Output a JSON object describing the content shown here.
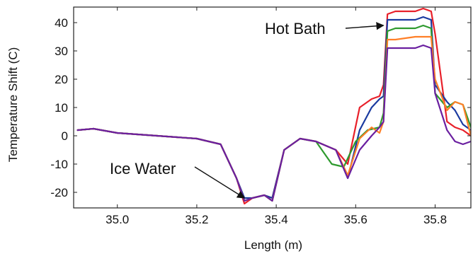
{
  "chart_data": {
    "type": "line",
    "title": "",
    "xlabel": "Length (m)",
    "ylabel": "Temperature Shift (C)",
    "xlim": [
      34.89,
      35.89
    ],
    "ylim": [
      -25.5,
      45.5
    ],
    "xticks": [
      35.0,
      35.2,
      35.4,
      35.6,
      35.8
    ],
    "xtick_labels": [
      "35.0",
      "35.2",
      "35.4",
      "35.6",
      "35.8"
    ],
    "yticks": [
      -20,
      -10,
      0,
      10,
      20,
      30,
      40
    ],
    "ytick_labels": [
      "-20",
      "-10",
      "0",
      "10",
      "20",
      "30",
      "40"
    ],
    "grid": false,
    "legend": "none",
    "annotations": [
      {
        "text": "Hot Bath",
        "target": [
          35.67,
          39
        ]
      },
      {
        "text": "Ice Water",
        "target": [
          35.32,
          -22
        ]
      }
    ],
    "series": [
      {
        "color": "#e8202a",
        "x": [
          34.9,
          34.94,
          35.0,
          35.1,
          35.2,
          35.26,
          35.3,
          35.32,
          35.34,
          35.37,
          35.39,
          35.42,
          35.46,
          35.5,
          35.55,
          35.58,
          35.61,
          35.64,
          35.66,
          35.67,
          35.68,
          35.7,
          35.75,
          35.77,
          35.79,
          35.8,
          35.83,
          35.85,
          35.87,
          35.89
        ],
        "y": [
          2,
          2.5,
          1,
          0,
          -1,
          -3,
          -15,
          -24,
          -22,
          -21,
          -22,
          -5,
          -1,
          -2,
          -5,
          -10,
          10,
          13,
          14,
          18,
          43,
          44,
          44,
          45,
          44,
          36,
          5,
          3,
          2,
          0
        ]
      },
      {
        "color": "#1a3aa0",
        "x": [
          34.9,
          34.94,
          35.0,
          35.1,
          35.2,
          35.26,
          35.3,
          35.32,
          35.34,
          35.37,
          35.39,
          35.42,
          35.46,
          35.5,
          35.55,
          35.58,
          35.61,
          35.64,
          35.66,
          35.67,
          35.68,
          35.7,
          35.75,
          35.77,
          35.79,
          35.8,
          35.83,
          35.85,
          35.87,
          35.89
        ],
        "y": [
          2,
          2.5,
          1,
          0,
          -1,
          -3,
          -15,
          -22,
          -22,
          -21,
          -22,
          -5,
          -1,
          -2,
          -5,
          -15,
          2,
          10,
          13,
          14,
          41,
          41,
          41,
          42,
          41,
          18,
          12,
          9,
          4,
          2
        ]
      },
      {
        "color": "#2e9a2e",
        "x": [
          34.9,
          34.94,
          35.0,
          35.1,
          35.2,
          35.26,
          35.3,
          35.32,
          35.34,
          35.37,
          35.39,
          35.42,
          35.46,
          35.5,
          35.54,
          35.57,
          35.6,
          35.63,
          35.66,
          35.67,
          35.68,
          35.7,
          35.75,
          35.77,
          35.79,
          35.8,
          35.83,
          35.85,
          35.87,
          35.89
        ],
        "y": [
          2,
          2.5,
          1,
          0,
          -1,
          -3,
          -15,
          -23,
          -22,
          -21,
          -23,
          -5,
          -1,
          -2,
          -10,
          -11,
          -2,
          2,
          3,
          8,
          37,
          38,
          38,
          39,
          38,
          15,
          10,
          12,
          11,
          3
        ]
      },
      {
        "color": "#ff7f27",
        "x": [
          34.9,
          34.94,
          35.0,
          35.1,
          35.2,
          35.26,
          35.3,
          35.32,
          35.34,
          35.37,
          35.39,
          35.42,
          35.46,
          35.5,
          35.55,
          35.58,
          35.61,
          35.64,
          35.66,
          35.67,
          35.68,
          35.7,
          35.75,
          35.77,
          35.79,
          35.8,
          35.83,
          35.85,
          35.87,
          35.89
        ],
        "y": [
          2,
          2.5,
          1,
          0,
          -1,
          -3,
          -15,
          -23,
          -22,
          -21,
          -23,
          -5,
          -1,
          -2,
          -5,
          -14,
          -1,
          3,
          1,
          5,
          34,
          34,
          35,
          35,
          35,
          20,
          9,
          12,
          11,
          0
        ]
      },
      {
        "color": "#6a1fa0",
        "x": [
          34.9,
          34.94,
          35.0,
          35.1,
          35.2,
          35.26,
          35.3,
          35.32,
          35.34,
          35.37,
          35.39,
          35.42,
          35.46,
          35.5,
          35.55,
          35.58,
          35.61,
          35.64,
          35.66,
          35.67,
          35.68,
          35.7,
          35.75,
          35.77,
          35.79,
          35.8,
          35.83,
          35.85,
          35.87,
          35.89
        ],
        "y": [
          2,
          2.5,
          1,
          0,
          -1,
          -3,
          -15,
          -23,
          -22,
          -21,
          -23,
          -5,
          -1,
          -2,
          -5,
          -15,
          -5,
          0,
          3,
          5,
          31,
          31,
          31,
          32,
          31,
          15,
          2,
          -2,
          -3,
          -2
        ]
      }
    ]
  }
}
